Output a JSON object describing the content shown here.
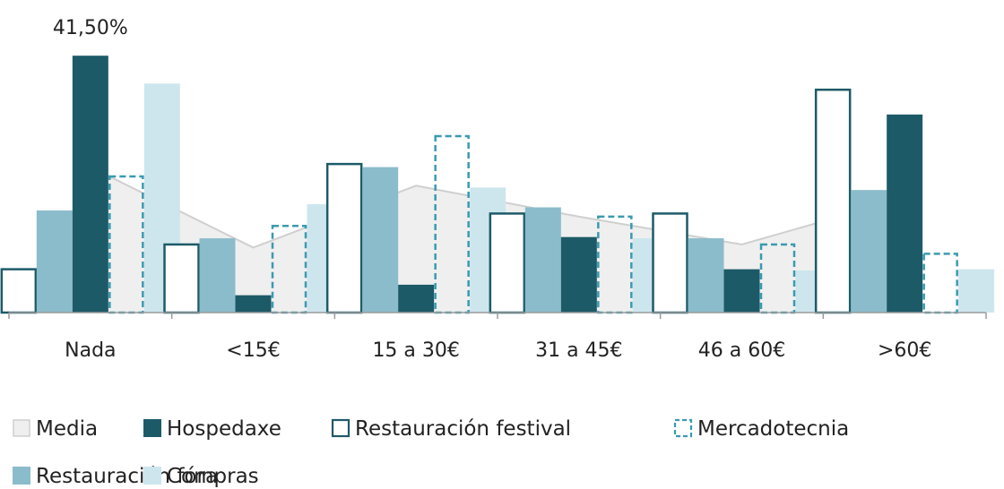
{
  "chart_data": {
    "type": "bar",
    "categories": [
      "Nada",
      "<15€",
      "15 a 30€",
      "31 a 45€",
      "46 a 60€",
      ">60€"
    ],
    "ylim": [
      0,
      45
    ],
    "grid": false,
    "legend_position": "bottom",
    "series": [
      {
        "name": "Media",
        "kind": "area",
        "values": [
          23.5,
          10.5,
          20.5,
          15.5,
          11.0,
          18.5
        ],
        "color": "#efefef"
      },
      {
        "name": "Restauración  festival",
        "kind": "outline",
        "values": [
          7.0,
          11.0,
          24.0,
          16.0,
          16.0,
          36.0
        ],
        "color": "#1d5a68"
      },
      {
        "name": "Restauración fóra",
        "kind": "solid",
        "values": [
          16.5,
          12.0,
          23.5,
          17.0,
          12.0,
          19.8
        ],
        "color": "#8bbccb"
      },
      {
        "name": "Hospedaxe",
        "kind": "solid",
        "values": [
          41.5,
          2.8,
          4.5,
          12.2,
          7.0,
          32.0
        ],
        "color": "#1d5a68"
      },
      {
        "name": "Mercadotecnia",
        "kind": "dashed",
        "values": [
          22.0,
          14.0,
          28.5,
          15.5,
          11.0,
          9.5
        ],
        "color": "#3a9ab0"
      },
      {
        "name": "Compras",
        "kind": "solid",
        "values": [
          37.0,
          17.5,
          20.2,
          12.0,
          6.8,
          7.0
        ],
        "color": "#cde6ee"
      }
    ],
    "annotations": [
      {
        "category": "Nada",
        "series": "Hospedaxe",
        "text": "41,50%"
      }
    ]
  },
  "legend_rows": [
    [
      "Media",
      "Hospedaxe",
      "Restauración  festival",
      "Mercadotecnia"
    ],
    [
      "Restauración fóra",
      "Compras"
    ]
  ]
}
